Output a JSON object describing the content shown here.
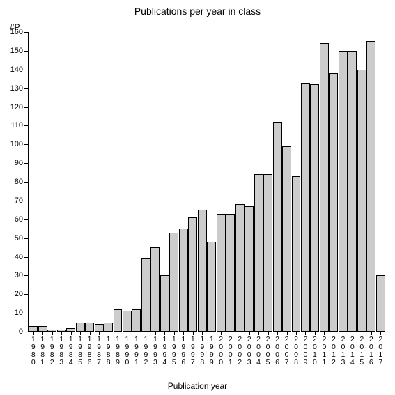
{
  "chart": {
    "type": "bar",
    "title": "Publications per year in class",
    "title_fontsize": 14,
    "ylabel": "#P",
    "xlabel": "Publication year",
    "label_fontsize": 12,
    "ylim": [
      0,
      160
    ],
    "ytick_step": 10,
    "yticks": [
      0,
      10,
      20,
      30,
      40,
      50,
      60,
      70,
      80,
      90,
      100,
      110,
      120,
      130,
      140,
      150,
      160
    ],
    "categories": [
      "1980",
      "1981",
      "1982",
      "1983",
      "1984",
      "1985",
      "1986",
      "1987",
      "1988",
      "1989",
      "1990",
      "1991",
      "1992",
      "1993",
      "1994",
      "1995",
      "1996",
      "1997",
      "1998",
      "1999",
      "2000",
      "2001",
      "2002",
      "2003",
      "2004",
      "2005",
      "2006",
      "2007",
      "2008",
      "2009",
      "2010",
      "2011",
      "2012",
      "2013",
      "2014",
      "2015",
      "2016",
      "2017"
    ],
    "values": [
      3,
      3,
      1,
      1,
      2,
      5,
      5,
      4,
      5,
      12,
      11,
      12,
      39,
      45,
      30,
      53,
      55,
      61,
      65,
      48,
      63,
      63,
      68,
      67,
      84,
      84,
      112,
      99,
      83,
      133,
      132,
      154,
      138,
      150,
      150,
      140,
      155,
      30
    ],
    "bar_fill": "#cccccc",
    "bar_border": "#000000",
    "background_color": "#ffffff",
    "axis_color": "#000000",
    "text_color": "#000000",
    "bar_width": 0.96,
    "tick_fontsize": 11
  }
}
